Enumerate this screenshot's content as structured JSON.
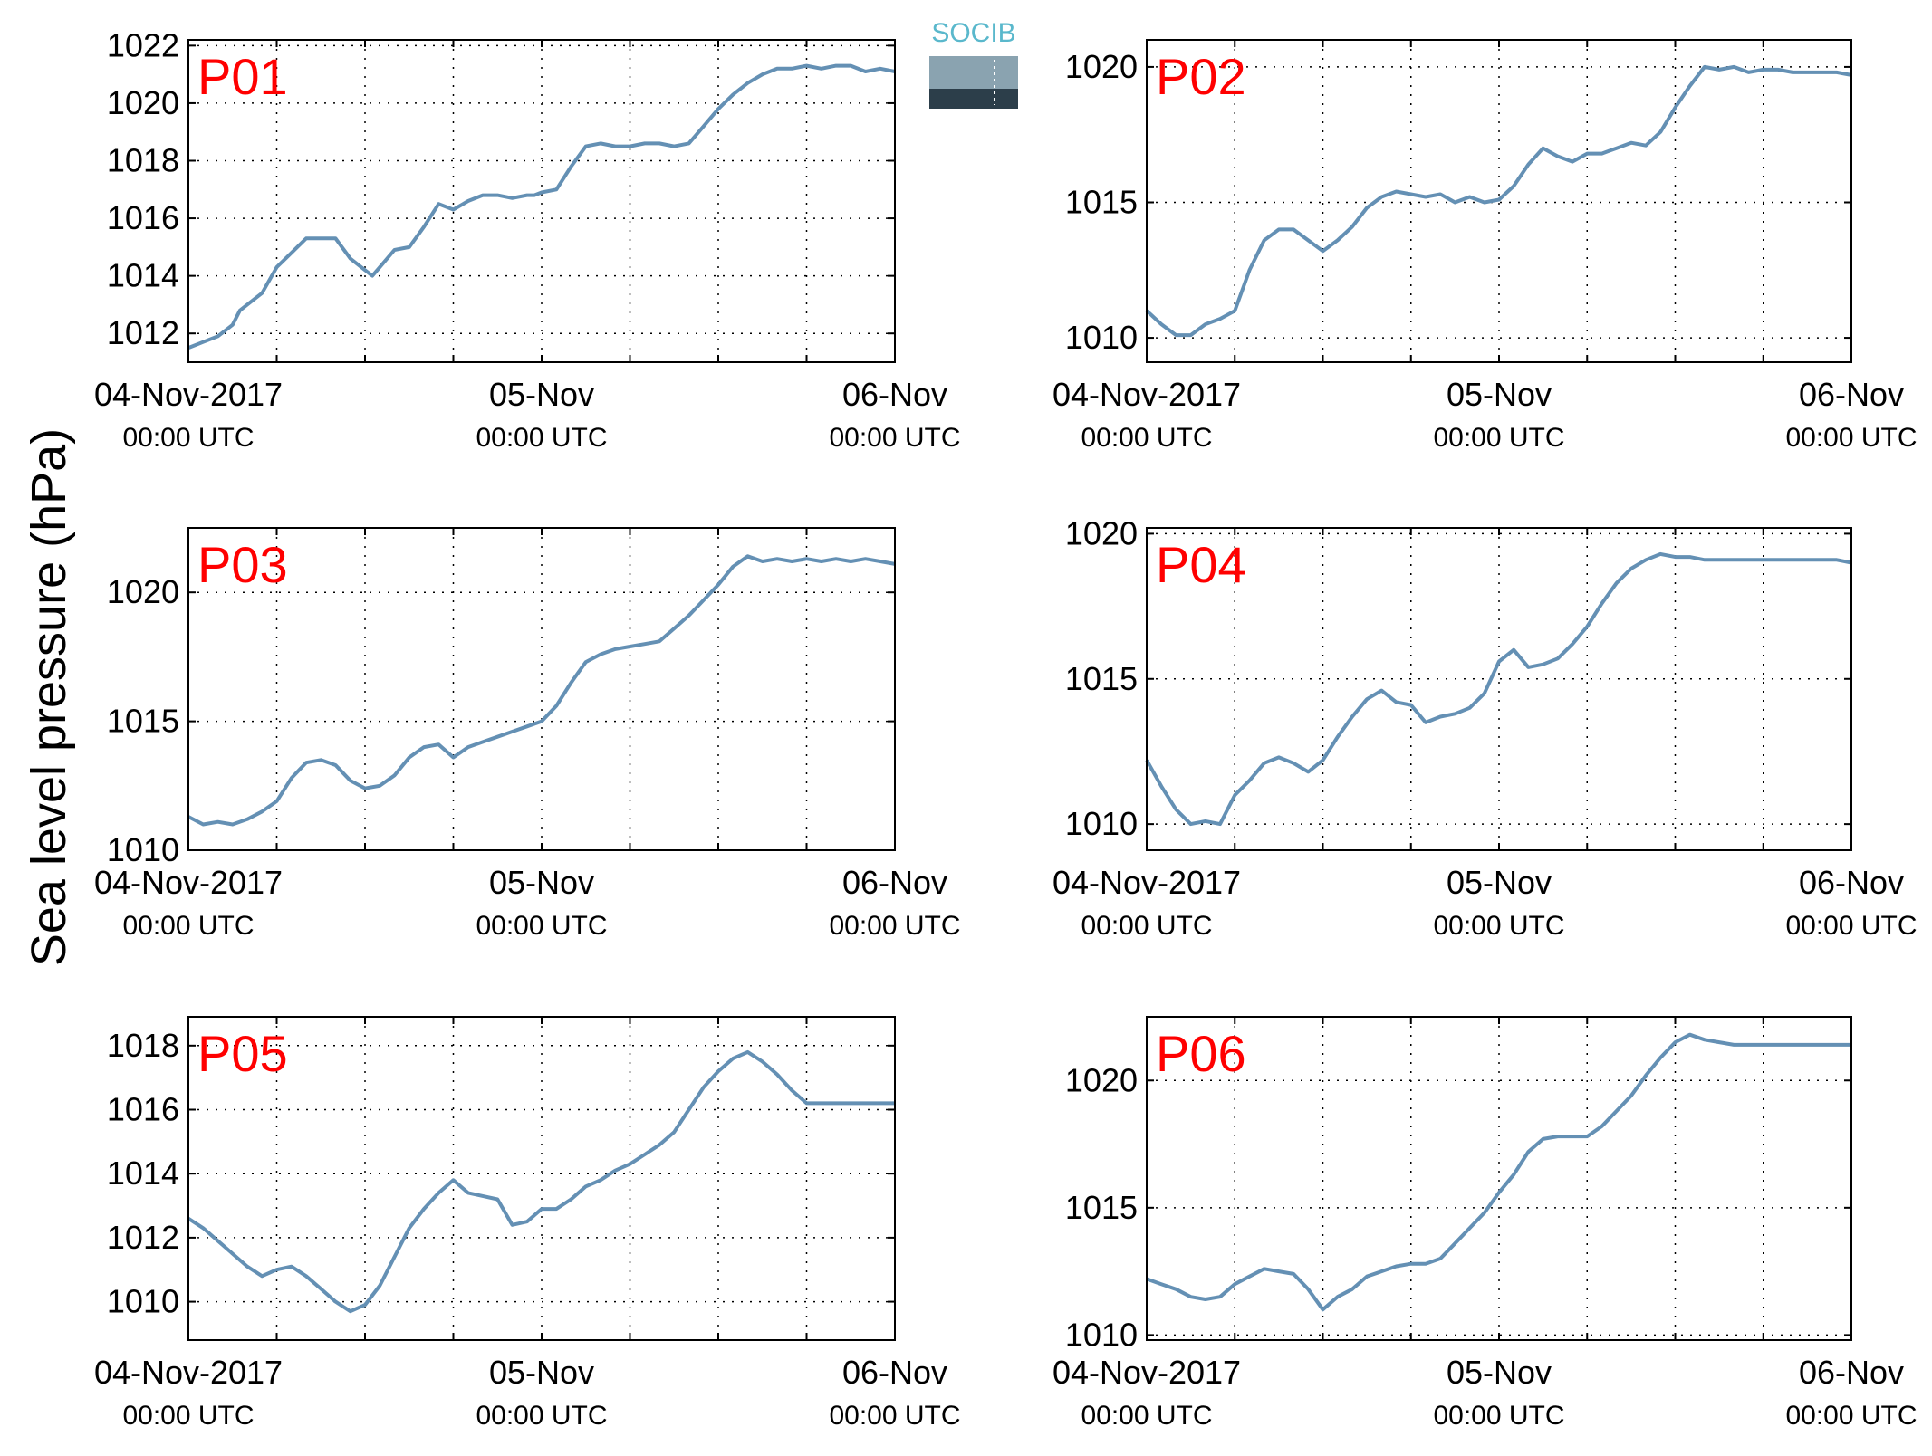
{
  "figure": {
    "ylabel": "Sea level pressure (hPa)",
    "logo": {
      "text": "SOCIB",
      "colors": {
        "text": "#5ab8cc",
        "top": "#8aa3b0",
        "bottom": "#2c3e4a"
      }
    },
    "series_color": "#6490b4",
    "label_color": "#ff0000"
  },
  "chart_data": [
    {
      "type": "line",
      "label": "P01",
      "x_ticks": [
        "04-Nov-2017",
        "05-Nov",
        "06-Nov"
      ],
      "x_sub": "00:00 UTC",
      "xlim_hours": [
        0,
        48
      ],
      "ylim": [
        1011,
        1022.2
      ],
      "y_ticks": [
        1012,
        1014,
        1016,
        1018,
        1020,
        1022
      ],
      "grid": true,
      "series": [
        {
          "x": [
            0,
            1,
            2,
            3,
            3.5,
            4.5,
            5,
            6,
            7,
            8,
            9,
            10,
            11,
            12,
            12.5,
            13,
            14,
            15,
            16,
            17,
            18,
            19,
            20,
            21,
            22,
            23,
            23.5,
            24,
            25,
            26,
            27,
            28,
            29,
            30,
            31,
            32,
            33,
            34,
            35,
            36,
            37,
            38,
            39,
            40,
            41,
            42,
            43,
            44,
            45,
            46,
            47,
            48
          ],
          "y": [
            1011.5,
            1011.7,
            1011.9,
            1012.3,
            1012.8,
            1013.2,
            1013.4,
            1014.3,
            1014.8,
            1015.3,
            1015.3,
            1015.3,
            1014.6,
            1014.2,
            1014.0,
            1014.3,
            1014.9,
            1015.0,
            1015.7,
            1016.5,
            1016.3,
            1016.6,
            1016.8,
            1016.8,
            1016.7,
            1016.8,
            1016.8,
            1016.9,
            1017.0,
            1017.8,
            1018.5,
            1018.6,
            1018.5,
            1018.5,
            1018.6,
            1018.6,
            1018.5,
            1018.6,
            1019.2,
            1019.8,
            1020.3,
            1020.7,
            1021.0,
            1021.2,
            1021.2,
            1021.3,
            1021.2,
            1021.3,
            1021.3,
            1021.1,
            1021.2,
            1021.1
          ]
        }
      ]
    },
    {
      "type": "line",
      "label": "P02",
      "x_ticks": [
        "04-Nov-2017",
        "05-Nov",
        "06-Nov"
      ],
      "x_sub": "00:00 UTC",
      "xlim_hours": [
        0,
        48
      ],
      "ylim": [
        1009.1,
        1021
      ],
      "y_ticks": [
        1010,
        1015,
        1020
      ],
      "grid": true,
      "series": [
        {
          "x": [
            0,
            1,
            2,
            3,
            4,
            5,
            6,
            7,
            8,
            9,
            10,
            11,
            12,
            13,
            14,
            15,
            16,
            17,
            18,
            19,
            20,
            21,
            22,
            23,
            24,
            25,
            26,
            27,
            28,
            29,
            30,
            31,
            32,
            33,
            34,
            35,
            36,
            37,
            38,
            39,
            40,
            41,
            42,
            43,
            44,
            45,
            46,
            47,
            48
          ],
          "y": [
            1011.0,
            1010.5,
            1010.1,
            1010.1,
            1010.5,
            1010.7,
            1011.0,
            1012.5,
            1013.6,
            1014.0,
            1014.0,
            1013.6,
            1013.2,
            1013.6,
            1014.1,
            1014.8,
            1015.2,
            1015.4,
            1015.3,
            1015.2,
            1015.3,
            1015.0,
            1015.2,
            1015.0,
            1015.1,
            1015.6,
            1016.4,
            1017.0,
            1016.7,
            1016.5,
            1016.8,
            1016.8,
            1017.0,
            1017.2,
            1017.1,
            1017.6,
            1018.5,
            1019.3,
            1020.0,
            1019.9,
            1020.0,
            1019.8,
            1019.9,
            1019.9,
            1019.8,
            1019.8,
            1019.8,
            1019.8,
            1019.7
          ]
        }
      ]
    },
    {
      "type": "line",
      "label": "P03",
      "x_ticks": [
        "04-Nov-2017",
        "05-Nov",
        "06-Nov"
      ],
      "x_sub": "00:00 UTC",
      "xlim_hours": [
        0,
        48
      ],
      "ylim": [
        1010,
        1022.5
      ],
      "y_ticks": [
        1010,
        1015,
        1020
      ],
      "grid": true,
      "series": [
        {
          "x": [
            0,
            1,
            2,
            3,
            4,
            5,
            6,
            7,
            8,
            9,
            10,
            11,
            12,
            13,
            14,
            15,
            16,
            17,
            18,
            19,
            20,
            21,
            22,
            23,
            24,
            25,
            26,
            27,
            28,
            29,
            30,
            31,
            32,
            33,
            34,
            35,
            36,
            37,
            38,
            39,
            40,
            41,
            42,
            43,
            44,
            45,
            46,
            47,
            48
          ],
          "y": [
            1011.3,
            1011.0,
            1011.1,
            1011.0,
            1011.2,
            1011.5,
            1011.9,
            1012.8,
            1013.4,
            1013.5,
            1013.3,
            1012.7,
            1012.4,
            1012.5,
            1012.9,
            1013.6,
            1014.0,
            1014.1,
            1013.6,
            1014.0,
            1014.2,
            1014.4,
            1014.6,
            1014.8,
            1015.0,
            1015.6,
            1016.5,
            1017.3,
            1017.6,
            1017.8,
            1017.9,
            1018.0,
            1018.1,
            1018.6,
            1019.1,
            1019.7,
            1020.3,
            1021.0,
            1021.4,
            1021.2,
            1021.3,
            1021.2,
            1021.3,
            1021.2,
            1021.3,
            1021.2,
            1021.3,
            1021.2,
            1021.1
          ]
        }
      ]
    },
    {
      "type": "line",
      "label": "P04",
      "x_ticks": [
        "04-Nov-2017",
        "05-Nov",
        "06-Nov"
      ],
      "x_sub": "00:00 UTC",
      "xlim_hours": [
        0,
        48
      ],
      "ylim": [
        1009.1,
        1020.2
      ],
      "y_ticks": [
        1010,
        1015,
        1020
      ],
      "grid": true,
      "series": [
        {
          "x": [
            0,
            1,
            2,
            3,
            4,
            5,
            6,
            7,
            8,
            9,
            10,
            11,
            12,
            13,
            14,
            15,
            16,
            17,
            18,
            19,
            20,
            21,
            22,
            23,
            24,
            25,
            26,
            27,
            28,
            29,
            30,
            31,
            32,
            33,
            34,
            35,
            36,
            37,
            38,
            39,
            40,
            41,
            42,
            43,
            44,
            45,
            46,
            47,
            48
          ],
          "y": [
            1012.2,
            1011.3,
            1010.5,
            1010.0,
            1010.1,
            1010.0,
            1011.0,
            1011.5,
            1012.1,
            1012.3,
            1012.1,
            1011.8,
            1012.2,
            1013.0,
            1013.7,
            1014.3,
            1014.6,
            1014.2,
            1014.1,
            1013.5,
            1013.7,
            1013.8,
            1014.0,
            1014.5,
            1015.6,
            1016.0,
            1015.4,
            1015.5,
            1015.7,
            1016.2,
            1016.8,
            1017.6,
            1018.3,
            1018.8,
            1019.1,
            1019.3,
            1019.2,
            1019.2,
            1019.1,
            1019.1,
            1019.1,
            1019.1,
            1019.1,
            1019.1,
            1019.1,
            1019.1,
            1019.1,
            1019.1,
            1019.0
          ]
        }
      ]
    },
    {
      "type": "line",
      "label": "P05",
      "x_ticks": [
        "04-Nov-2017",
        "05-Nov",
        "06-Nov"
      ],
      "x_sub": "00:00 UTC",
      "xlim_hours": [
        0,
        48
      ],
      "ylim": [
        1008.8,
        1018.9
      ],
      "y_ticks": [
        1010,
        1012,
        1014,
        1016,
        1018
      ],
      "grid": true,
      "series": [
        {
          "x": [
            0,
            1,
            2,
            3,
            4,
            5,
            6,
            7,
            8,
            9,
            10,
            11,
            12,
            13,
            14,
            15,
            16,
            17,
            18,
            19,
            20,
            21,
            22,
            23,
            24,
            25,
            26,
            27,
            28,
            29,
            30,
            31,
            32,
            33,
            34,
            35,
            36,
            37,
            38,
            39,
            40,
            41,
            42,
            43,
            44,
            45,
            46,
            47,
            48
          ],
          "y": [
            1012.6,
            1012.3,
            1011.9,
            1011.5,
            1011.1,
            1010.8,
            1011.0,
            1011.1,
            1010.8,
            1010.4,
            1010.0,
            1009.7,
            1009.9,
            1010.5,
            1011.4,
            1012.3,
            1012.9,
            1013.4,
            1013.8,
            1013.4,
            1013.3,
            1013.2,
            1012.4,
            1012.5,
            1012.9,
            1012.9,
            1013.2,
            1013.6,
            1013.8,
            1014.1,
            1014.3,
            1014.6,
            1014.9,
            1015.3,
            1016.0,
            1016.7,
            1017.2,
            1017.6,
            1017.8,
            1017.5,
            1017.1,
            1016.6,
            1016.2,
            1016.2,
            1016.2,
            1016.2,
            1016.2,
            1016.2,
            1016.2
          ]
        }
      ]
    },
    {
      "type": "line",
      "label": "P06",
      "x_ticks": [
        "04-Nov-2017",
        "05-Nov",
        "06-Nov"
      ],
      "x_sub": "00:00 UTC",
      "xlim_hours": [
        0,
        48
      ],
      "ylim": [
        1009.8,
        1022.5
      ],
      "y_ticks": [
        1010,
        1015,
        1020
      ],
      "grid": true,
      "series": [
        {
          "x": [
            0,
            1,
            2,
            3,
            4,
            5,
            6,
            7,
            8,
            9,
            10,
            11,
            12,
            13,
            14,
            15,
            16,
            17,
            18,
            19,
            20,
            21,
            22,
            23,
            24,
            25,
            26,
            27,
            28,
            29,
            30,
            31,
            32,
            33,
            34,
            35,
            36,
            37,
            38,
            39,
            40,
            41,
            42,
            43,
            44,
            45,
            46,
            47,
            48
          ],
          "y": [
            1012.2,
            1012.0,
            1011.8,
            1011.5,
            1011.4,
            1011.5,
            1012.0,
            1012.3,
            1012.6,
            1012.5,
            1012.4,
            1011.8,
            1011.0,
            1011.5,
            1011.8,
            1012.3,
            1012.5,
            1012.7,
            1012.8,
            1012.8,
            1013.0,
            1013.6,
            1014.2,
            1014.8,
            1015.6,
            1016.3,
            1017.2,
            1017.7,
            1017.8,
            1017.8,
            1017.8,
            1018.2,
            1018.8,
            1019.4,
            1020.2,
            1020.9,
            1021.5,
            1021.8,
            1021.6,
            1021.5,
            1021.4,
            1021.4,
            1021.4,
            1021.4,
            1021.4,
            1021.4,
            1021.4,
            1021.4,
            1021.4
          ]
        }
      ]
    }
  ]
}
